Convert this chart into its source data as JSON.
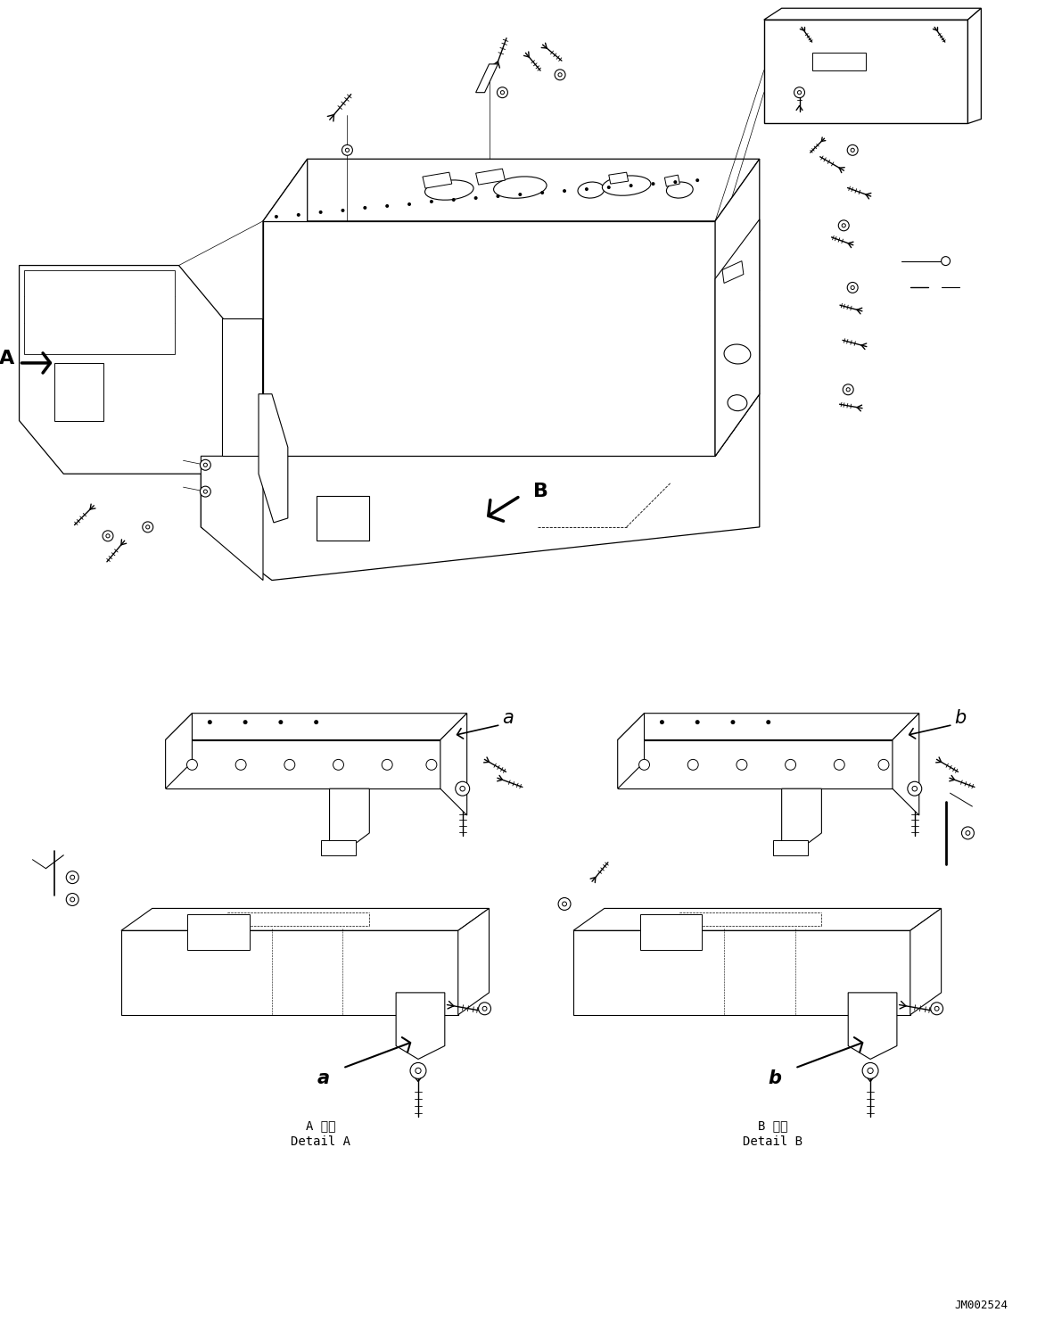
{
  "bg_color": "#ffffff",
  "line_color": "#000000",
  "fig_width": 11.63,
  "fig_height": 14.9,
  "label_A": "A",
  "label_B": "B",
  "label_a": "a",
  "label_b": "b",
  "detail_A_ja": "A 詳細",
  "detail_A_en": "Detail A",
  "detail_B_ja": "B 詳細",
  "detail_B_en": "Detail B",
  "part_number": "JM002524"
}
